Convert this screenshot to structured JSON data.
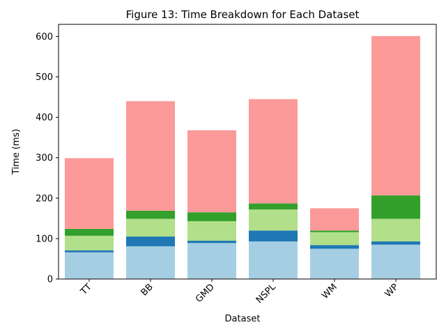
{
  "chart_data": {
    "type": "bar",
    "stacked": true,
    "title": "Figure 13: Time Breakdown for Each Dataset",
    "xlabel": "Dataset",
    "ylabel": "Time (ms)",
    "ylim": [
      0,
      630
    ],
    "yticks": [
      0,
      100,
      200,
      300,
      400,
      500,
      600
    ],
    "categories": [
      "TT",
      "BB",
      "GMD",
      "NSPL",
      "WM",
      "WP"
    ],
    "legend": "none",
    "grid": false,
    "series": [
      {
        "color": "#a6cee3",
        "values": [
          66,
          81,
          89,
          93,
          75,
          85
        ]
      },
      {
        "color": "#1f78b4",
        "values": [
          5,
          24,
          6,
          27,
          9,
          8
        ]
      },
      {
        "color": "#b2df8a",
        "values": [
          36,
          44,
          48,
          52,
          32,
          56
        ]
      },
      {
        "color": "#33a02c",
        "values": [
          17,
          20,
          22,
          15,
          4,
          58
        ]
      },
      {
        "color": "#fb9a99",
        "values": [
          175,
          271,
          203,
          258,
          55,
          394
        ]
      }
    ]
  }
}
